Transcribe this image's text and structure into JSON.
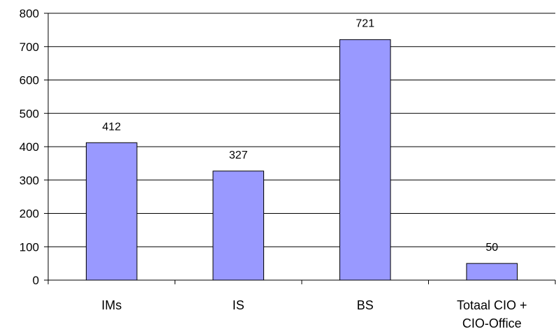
{
  "chart_data": {
    "type": "bar",
    "title": "",
    "xlabel": "",
    "ylabel": "",
    "categories": [
      "IMs",
      "IS",
      "BS",
      "Totaal CIO + CIO-Office"
    ],
    "category_lines": [
      [
        "IMs"
      ],
      [
        "IS"
      ],
      [
        "BS"
      ],
      [
        "Totaal CIO +",
        "CIO-Office"
      ]
    ],
    "values": [
      412,
      327,
      721,
      50
    ],
    "data_labels": [
      "412",
      "327",
      "721",
      "50"
    ],
    "ylim": [
      0,
      800
    ],
    "yticks": [
      0,
      100,
      200,
      300,
      400,
      500,
      600,
      700,
      800
    ],
    "grid": "horizontal",
    "legend": "none",
    "colors": {
      "bar_fill": "#9999ff",
      "bar_stroke": "#000000",
      "grid": "#000000",
      "axis": "#000000"
    }
  }
}
